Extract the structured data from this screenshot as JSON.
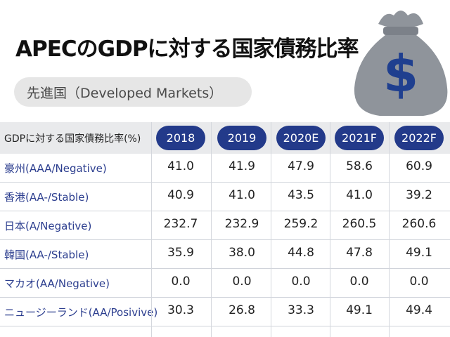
{
  "chart_data": {
    "type": "table",
    "title": "APECのGDPに対する国家債務比率",
    "subtitle": "先進国（Developed Markets）",
    "header_label": "GDPに対する国家債務比率(%)",
    "columns": [
      "2018",
      "2019",
      "2020E",
      "2021F",
      "2022F"
    ],
    "rows": [
      {
        "label": "豪州(AAA/Negative)",
        "values": [
          "41.0",
          "41.9",
          "47.9",
          "58.6",
          "60.9"
        ]
      },
      {
        "label": "香港(AA-/Stable)",
        "values": [
          "40.9",
          "41.0",
          "43.5",
          "41.0",
          "39.2"
        ]
      },
      {
        "label": "日本(A/Negative)",
        "values": [
          "232.7",
          "232.9",
          "259.2",
          "260.5",
          "260.6"
        ]
      },
      {
        "label": "韓国(AA-/Stable)",
        "values": [
          "35.9",
          "38.0",
          "44.8",
          "47.8",
          "49.1"
        ]
      },
      {
        "label": "マカオ(AA/Negative)",
        "values": [
          "0.0",
          "0.0",
          "0.0",
          "0.0",
          "0.0"
        ]
      },
      {
        "label": "ニュージーランド(AA/Posivive)",
        "values": [
          "30.3",
          "26.8",
          "33.3",
          "49.1",
          "49.4"
        ]
      }
    ]
  },
  "colors": {
    "header_pill": "#233a8a",
    "row_label": "#2c3e8f",
    "bag": "#8f949b",
    "dollar": "#1f3f8f"
  },
  "icons": {
    "money_bag": "money-bag-dollar-icon"
  }
}
